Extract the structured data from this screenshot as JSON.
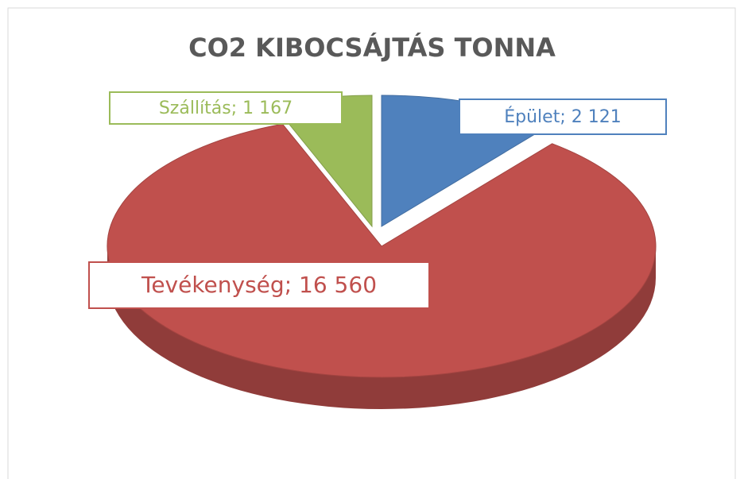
{
  "chart_data": {
    "type": "pie3d",
    "title": "CO2 KIBOCSÁJTÁS TONNA",
    "categories": [
      "Épület",
      "Tevékenység",
      "Szállítás"
    ],
    "values": [
      2121,
      16560,
      1167
    ],
    "value_labels": [
      "2 121",
      "16 560",
      "1 167"
    ],
    "label_separator": ";  ",
    "colors": [
      "#4f81bd",
      "#c0504d",
      "#9bbb59"
    ]
  }
}
